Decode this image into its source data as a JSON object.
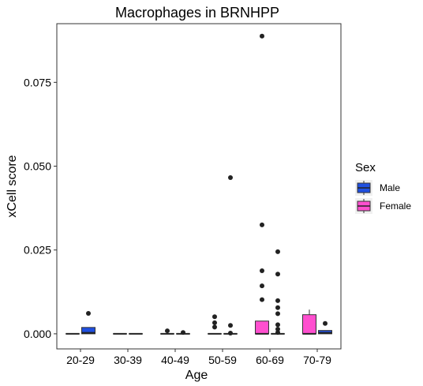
{
  "chart_data": {
    "type": "box",
    "title": "Macrophages in BRNHPP",
    "xlabel": "Age",
    "ylabel": "xCell score",
    "categories": [
      "20-29",
      "30-39",
      "40-49",
      "50-59",
      "60-69",
      "70-79"
    ],
    "ylim": [
      -0.0045,
      0.0925
    ],
    "yticks": [
      "0.000",
      "0.025",
      "0.050",
      "0.075"
    ],
    "grid": false,
    "legend": {
      "title": "Sex",
      "placement": "right",
      "entries": [
        {
          "name": "Male",
          "color": "#1f4fe0"
        },
        {
          "name": "Female",
          "color": "#ff4fcf"
        }
      ]
    },
    "boxes": [
      {
        "category": "20-29",
        "sex": "Female",
        "min": 0,
        "q1": 0,
        "median": 0,
        "q3": 0,
        "max": 0,
        "outliers": []
      },
      {
        "category": "20-29",
        "sex": "Male",
        "min": 0,
        "q1": 0,
        "median": 0.0003,
        "q3": 0.0019,
        "max": 0.0019,
        "outliers": [
          0.0061
        ]
      },
      {
        "category": "30-39",
        "sex": "Female",
        "min": 0,
        "q1": 0,
        "median": 0,
        "q3": 0,
        "max": 0,
        "outliers": []
      },
      {
        "category": "30-39",
        "sex": "Male",
        "min": 0,
        "q1": 0,
        "median": 0,
        "q3": 0,
        "max": 0,
        "outliers": []
      },
      {
        "category": "40-49",
        "sex": "Female",
        "min": 0,
        "q1": 0,
        "median": 0,
        "q3": 0,
        "max": 0,
        "outliers": [
          0.0009
        ]
      },
      {
        "category": "40-49",
        "sex": "Male",
        "min": 0,
        "q1": 0,
        "median": 0,
        "q3": 0,
        "max": 0,
        "outliers": [
          0.0004
        ]
      },
      {
        "category": "50-59",
        "sex": "Female",
        "min": 0,
        "q1": 0,
        "median": 0,
        "q3": 0,
        "max": 0,
        "outliers": [
          0.0051,
          0.0033,
          0.002
        ]
      },
      {
        "category": "50-59",
        "sex": "Male",
        "min": 0,
        "q1": 0,
        "median": 0,
        "q3": 0,
        "max": 0,
        "outliers": [
          0.0466,
          0.0025,
          0.0002
        ]
      },
      {
        "category": "60-69",
        "sex": "Female",
        "min": 0,
        "q1": 0,
        "median": 0,
        "q3": 0.0038,
        "max": 0.0038,
        "outliers": [
          0.0888,
          0.0325,
          0.0188,
          0.0143,
          0.0102
        ]
      },
      {
        "category": "60-69",
        "sex": "Male",
        "min": 0,
        "q1": 0,
        "median": 0,
        "q3": 0,
        "max": 0,
        "outliers": [
          0.0245,
          0.0178,
          0.0099,
          0.0078,
          0.006,
          0.0027,
          0.0014,
          0.0004
        ]
      },
      {
        "category": "70-79",
        "sex": "Female",
        "min": 0,
        "q1": 0,
        "median": 0,
        "q3": 0.0057,
        "max": 0.0072,
        "outliers": []
      },
      {
        "category": "70-79",
        "sex": "Male",
        "min": 0,
        "q1": 0,
        "median": 0.0003,
        "q3": 0.001,
        "max": 0.001,
        "outliers": [
          0.0031
        ]
      }
    ]
  }
}
